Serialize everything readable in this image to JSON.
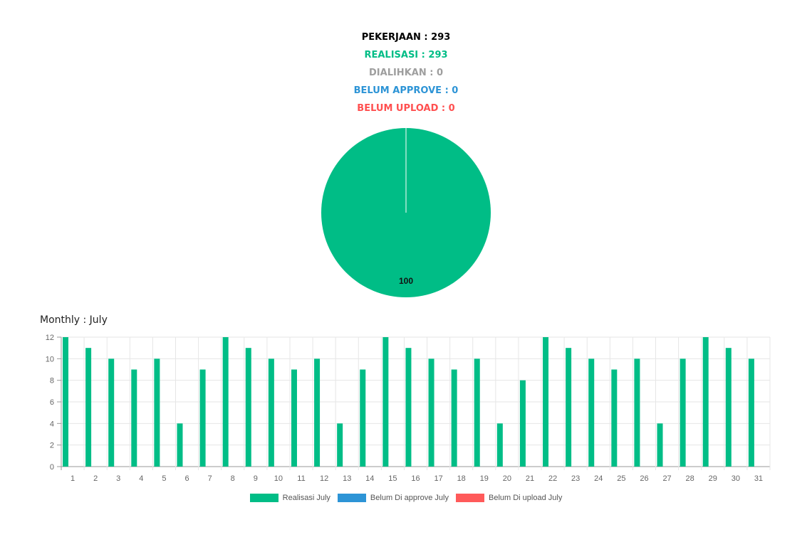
{
  "stats": {
    "pekerjaan": "PEKERJAAN : 293",
    "realisasi": "REALISASI : 293",
    "dialihkan": "DIALIHKAN : 0",
    "belum_approve": "BELUM APPROVE : 0",
    "belum_upload": "BELUM UPLOAD : 0"
  },
  "monthly_title": "Monthly : July",
  "legend": {
    "realisasi": "Realisasi July",
    "approve": "Belum Di approve July",
    "upload": "Belum Di upload July"
  },
  "colors": {
    "realisasi": "#00bd86",
    "approve": "#2d94d6",
    "upload": "#ff5a5a",
    "dialihkan": "#9e9e9e"
  },
  "chart_data": [
    {
      "type": "pie",
      "categories": [
        "Realisasi",
        "Dialihkan",
        "Belum Approve",
        "Belum Upload"
      ],
      "values": [
        100,
        0,
        0,
        0
      ],
      "data_labels": [
        "100"
      ]
    },
    {
      "type": "bar",
      "categories": [
        "1",
        "2",
        "3",
        "4",
        "5",
        "6",
        "7",
        "8",
        "9",
        "10",
        "11",
        "12",
        "13",
        "14",
        "15",
        "16",
        "17",
        "18",
        "19",
        "20",
        "21",
        "22",
        "23",
        "24",
        "25",
        "26",
        "27",
        "28",
        "29",
        "30",
        "31"
      ],
      "series": [
        {
          "name": "Realisasi July",
          "values": [
            12,
            11,
            10,
            9,
            10,
            4,
            9,
            12,
            11,
            10,
            9,
            10,
            4,
            9,
            12,
            11,
            10,
            9,
            10,
            4,
            8,
            12,
            11,
            10,
            9,
            10,
            4,
            10,
            12,
            11,
            10
          ]
        },
        {
          "name": "Belum Di approve July",
          "values": [
            0,
            0,
            0,
            0,
            0,
            0,
            0,
            0,
            0,
            0,
            0,
            0,
            0,
            0,
            0,
            0,
            0,
            0,
            0,
            0,
            0,
            0,
            0,
            0,
            0,
            0,
            0,
            0,
            0,
            0,
            0
          ]
        },
        {
          "name": "Belum Di upload July",
          "values": [
            0,
            0,
            0,
            0,
            0,
            0,
            0,
            0,
            0,
            0,
            0,
            0,
            0,
            0,
            0,
            0,
            0,
            0,
            0,
            0,
            0,
            0,
            0,
            0,
            0,
            0,
            0,
            0,
            0,
            0,
            0
          ]
        }
      ],
      "yticks": [
        "0",
        "2",
        "4",
        "6",
        "8",
        "10",
        "12"
      ],
      "ylim": [
        0,
        12
      ],
      "grid": true,
      "legend_position": "bottom"
    }
  ]
}
